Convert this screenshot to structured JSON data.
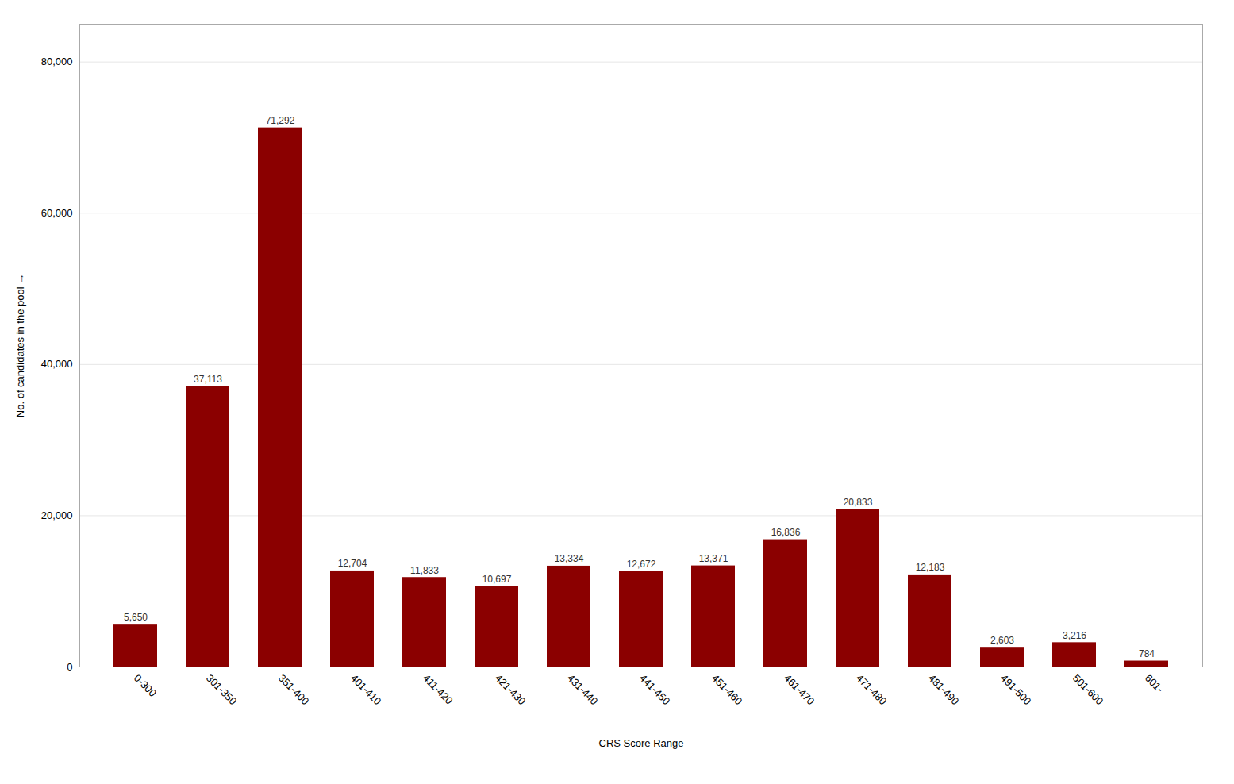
{
  "chart_data": {
    "type": "bar",
    "xlabel": "CRS Score Range",
    "ylabel": "No. of candidates in the pool",
    "categories": [
      "0-300",
      "301-350",
      "351-400",
      "401-410",
      "411-420",
      "421-430",
      "431-440",
      "441-450",
      "451-460",
      "461-470",
      "471-480",
      "481-490",
      "491-500",
      "501-600",
      "601-"
    ],
    "values": [
      5650,
      37113,
      71292,
      12704,
      11833,
      10697,
      13334,
      12672,
      13371,
      16836,
      20833,
      12183,
      2603,
      3216,
      784
    ],
    "value_labels": [
      "5,650",
      "37,113",
      "71,292",
      "12,704",
      "11,833",
      "10,697",
      "13,334",
      "12,672",
      "13,371",
      "16,836",
      "20,833",
      "12,183",
      "2,603",
      "3,216",
      "784"
    ],
    "data_labels": true,
    "color": "#8B0000",
    "ylim": [
      0,
      85000
    ],
    "yticks": [
      0,
      {
        "value": 20000,
        "label": "20,000"
      },
      {
        "value": 40000,
        "label": "40,000"
      },
      {
        "value": 60000,
        "label": "60,000"
      },
      {
        "value": 80000,
        "label": "80,000"
      }
    ],
    "grid": true
  }
}
